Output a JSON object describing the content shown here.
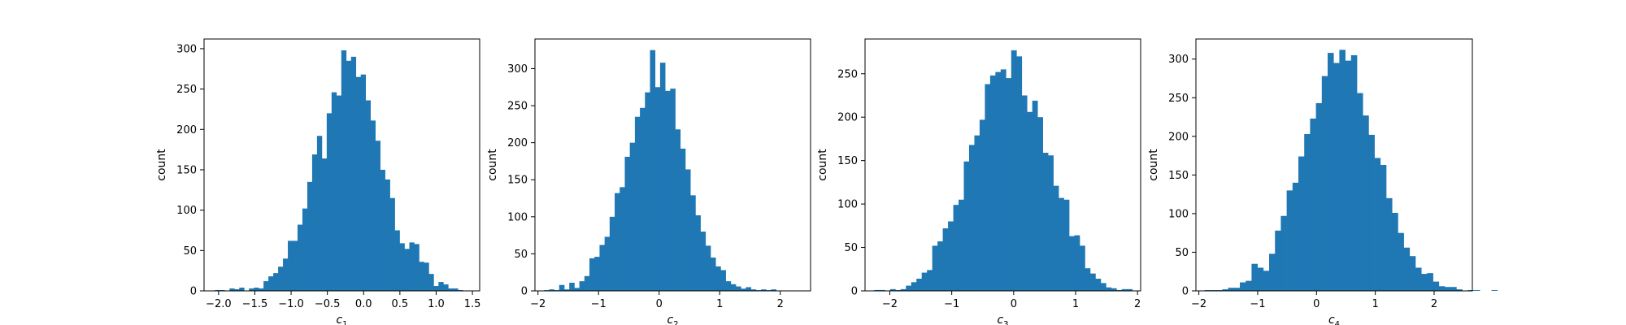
{
  "figure": {
    "background": "#ffffff"
  },
  "chart_data": [
    {
      "type": "bar",
      "variant": "histogram",
      "bar_color": "#1f77b4",
      "xlabel_base": "c",
      "xlabel_sub": "1",
      "ylabel": "count",
      "xlim": [
        -2.2,
        1.6
      ],
      "ylim": [
        0,
        312
      ],
      "xticks": [
        -2.0,
        -1.5,
        -1.0,
        -0.5,
        0.0,
        0.5,
        1.0,
        1.5
      ],
      "xtick_labels": [
        "−2.0",
        "−1.5",
        "−1.0",
        "−0.5",
        "0.0",
        "0.5",
        "1.0",
        "1.5"
      ],
      "yticks": [
        0,
        50,
        100,
        150,
        200,
        250,
        300
      ],
      "ytick_labels": [
        "0",
        "50",
        "100",
        "150",
        "200",
        "250",
        "300"
      ],
      "bin_start": -2.05,
      "bin_width": 0.067,
      "values": [
        1,
        1,
        0,
        3,
        2,
        4,
        0,
        3,
        4,
        3,
        12,
        18,
        22,
        30,
        40,
        62,
        62,
        82,
        102,
        135,
        169,
        192,
        164,
        220,
        246,
        242,
        298,
        285,
        290,
        265,
        268,
        236,
        211,
        186,
        150,
        138,
        115,
        75,
        59,
        52,
        60,
        58,
        36,
        35,
        21,
        6,
        11,
        8,
        3,
        3,
        1
      ]
    },
    {
      "type": "bar",
      "variant": "histogram",
      "bar_color": "#1f77b4",
      "xlabel_base": "c",
      "xlabel_sub": "2",
      "ylabel": "count",
      "xlim": [
        -2.05,
        2.5
      ],
      "ylim": [
        0,
        340
      ],
      "xticks": [
        -2,
        -1,
        0,
        1,
        2
      ],
      "xtick_labels": [
        "−2",
        "−1",
        "0",
        "1",
        "2"
      ],
      "yticks": [
        0,
        50,
        100,
        150,
        200,
        250,
        300
      ],
      "ytick_labels": [
        "0",
        "50",
        "100",
        "150",
        "200",
        "250",
        "300"
      ],
      "bin_start": -1.9,
      "bin_width": 0.0833,
      "values": [
        1,
        2,
        1,
        8,
        2,
        11,
        4,
        13,
        20,
        44,
        46,
        62,
        73,
        100,
        132,
        140,
        181,
        200,
        235,
        247,
        268,
        325,
        275,
        308,
        270,
        273,
        218,
        192,
        164,
        129,
        102,
        80,
        61,
        45,
        33,
        28,
        13,
        9,
        6,
        3,
        5,
        2,
        1,
        2,
        1,
        2
      ]
    },
    {
      "type": "bar",
      "variant": "histogram",
      "bar_color": "#1f77b4",
      "xlabel_base": "c",
      "xlabel_sub": "3",
      "ylabel": "count",
      "xlim": [
        -2.4,
        2.05
      ],
      "ylim": [
        0,
        290
      ],
      "xticks": [
        -2,
        -1,
        0,
        1,
        2
      ],
      "xtick_labels": [
        "−2",
        "−1",
        "0",
        "1",
        "2"
      ],
      "yticks": [
        0,
        50,
        100,
        150,
        200,
        250
      ],
      "ytick_labels": [
        "0",
        "50",
        "100",
        "150",
        "200",
        "250"
      ],
      "bin_start": -2.25,
      "bin_width": 0.085,
      "values": [
        1,
        1,
        0,
        2,
        1,
        2,
        6,
        10,
        14,
        21,
        24,
        52,
        57,
        72,
        80,
        99,
        105,
        149,
        168,
        179,
        197,
        238,
        248,
        252,
        255,
        245,
        277,
        270,
        225,
        206,
        219,
        200,
        159,
        156,
        121,
        107,
        105,
        63,
        64,
        52,
        26,
        20,
        14,
        9,
        4,
        3,
        1,
        2,
        2
      ]
    },
    {
      "type": "bar",
      "variant": "histogram",
      "bar_color": "#1f77b4",
      "xlabel_base": "c",
      "xlabel_sub": "4",
      "ylabel": "count",
      "xlim": [
        -2.05,
        2.65
      ],
      "ylim": [
        0,
        326
      ],
      "xticks": [
        -2,
        -1,
        0,
        1,
        2
      ],
      "xtick_labels": [
        "−2",
        "−1",
        "0",
        "1",
        "2"
      ],
      "yticks": [
        0,
        50,
        100,
        150,
        200,
        250,
        300
      ],
      "ytick_labels": [
        "0",
        "50",
        "100",
        "150",
        "200",
        "250",
        "300"
      ],
      "bin_start": -1.9,
      "bin_width": 0.0995,
      "values": [
        1,
        1,
        1,
        2,
        4,
        4,
        11,
        13,
        35,
        30,
        26,
        48,
        78,
        97,
        130,
        140,
        174,
        203,
        223,
        243,
        278,
        308,
        295,
        312,
        298,
        305,
        256,
        227,
        202,
        172,
        163,
        120,
        101,
        75,
        56,
        45,
        30,
        22,
        23,
        12,
        6,
        5,
        5,
        2,
        0,
        1,
        1,
        0,
        0,
        1
      ]
    }
  ]
}
